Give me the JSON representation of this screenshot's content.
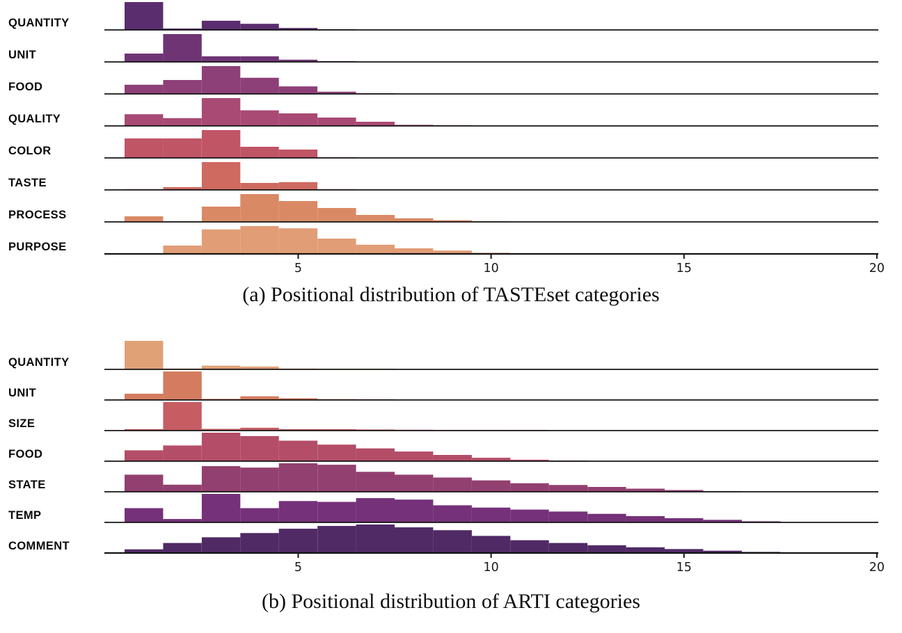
{
  "page": {
    "background": "#ffffff",
    "text_color": "#0d0d0d"
  },
  "chart_data": [
    {
      "type": "bar",
      "subtype": "ridgeline-histogram",
      "caption": "(a) Positional distribution of TASTEset categories",
      "xlabel": "",
      "ylabel": "",
      "x_ticks": [
        5,
        10,
        15,
        20
      ],
      "x_range": [
        0,
        20.5
      ],
      "bin_width": 1,
      "first_bin_center": 1,
      "grid": false,
      "legend": "none",
      "rows": [
        {
          "label": "QUANTITY",
          "color": "#5a2d6e",
          "rel_heights": [
            1.0,
            0.05,
            0.33,
            0.22,
            0.07,
            0.02
          ]
        },
        {
          "label": "UNIT",
          "color": "#6f3474",
          "rel_heights": [
            0.3,
            1.0,
            0.2,
            0.2,
            0.08,
            0.03
          ]
        },
        {
          "label": "FOOD",
          "color": "#8d4078",
          "rel_heights": [
            0.33,
            0.5,
            1.0,
            0.58,
            0.27,
            0.08,
            0.02
          ]
        },
        {
          "label": "QUALITY",
          "color": "#a84a74",
          "rel_heights": [
            0.42,
            0.28,
            1.0,
            0.56,
            0.45,
            0.3,
            0.15,
            0.04,
            0.01
          ]
        },
        {
          "label": "COLOR",
          "color": "#c05566",
          "rel_heights": [
            0.7,
            0.7,
            1.0,
            0.4,
            0.3,
            0.02
          ]
        },
        {
          "label": "TASTE",
          "color": "#ce6a60",
          "rel_heights": [
            0.02,
            0.1,
            1.0,
            0.25,
            0.28,
            0.02
          ]
        },
        {
          "label": "PROCESS",
          "color": "#d98a65",
          "rel_heights": [
            0.2,
            0.01,
            0.55,
            1.0,
            0.75,
            0.5,
            0.25,
            0.13,
            0.06,
            0.02
          ]
        },
        {
          "label": "PURPOSE",
          "color": "#e19d76",
          "rel_heights": [
            0.02,
            0.3,
            0.88,
            1.0,
            0.92,
            0.55,
            0.33,
            0.2,
            0.12,
            0.04
          ]
        }
      ]
    },
    {
      "type": "bar",
      "subtype": "ridgeline-histogram",
      "caption": "(b) Positional distribution of ARTI categories",
      "xlabel": "",
      "ylabel": "",
      "x_ticks": [
        5,
        10,
        15,
        20
      ],
      "x_range": [
        0,
        20.5
      ],
      "bin_width": 1,
      "first_bin_center": 1,
      "grid": false,
      "legend": "none",
      "rows": [
        {
          "label": "QUANTITY",
          "color": "#e0a177",
          "rel_heights": [
            1.0,
            0.03,
            0.13,
            0.1,
            0.03,
            0.01,
            0.02
          ]
        },
        {
          "label": "UNIT",
          "color": "#d47c5f",
          "rel_heights": [
            0.22,
            1.0,
            0.04,
            0.13,
            0.06,
            0.03,
            0.01
          ]
        },
        {
          "label": "SIZE",
          "color": "#c55d63",
          "rel_heights": [
            0.05,
            1.0,
            0.06,
            0.1,
            0.05,
            0.05,
            0.04,
            0.03,
            0.02,
            0.01,
            0.01
          ]
        },
        {
          "label": "FOOD",
          "color": "#b34d68",
          "rel_heights": [
            0.38,
            0.55,
            1.0,
            0.88,
            0.72,
            0.58,
            0.45,
            0.34,
            0.22,
            0.12,
            0.05,
            0.02
          ]
        },
        {
          "label": "STATE",
          "color": "#92406f",
          "rel_heights": [
            0.6,
            0.25,
            0.9,
            0.85,
            1.0,
            0.95,
            0.7,
            0.6,
            0.5,
            0.4,
            0.3,
            0.24,
            0.17,
            0.11,
            0.06,
            0.02
          ]
        },
        {
          "label": "TEMP",
          "color": "#753179",
          "rel_heights": [
            0.5,
            0.12,
            1.0,
            0.5,
            0.75,
            0.72,
            0.85,
            0.8,
            0.6,
            0.52,
            0.45,
            0.38,
            0.3,
            0.22,
            0.15,
            0.09,
            0.04
          ]
        },
        {
          "label": "COMMENT",
          "color": "#502a65",
          "rel_heights": [
            0.13,
            0.35,
            0.55,
            0.7,
            0.85,
            0.95,
            1.0,
            0.9,
            0.8,
            0.6,
            0.45,
            0.35,
            0.27,
            0.2,
            0.14,
            0.08,
            0.04,
            0.02
          ]
        }
      ]
    }
  ]
}
